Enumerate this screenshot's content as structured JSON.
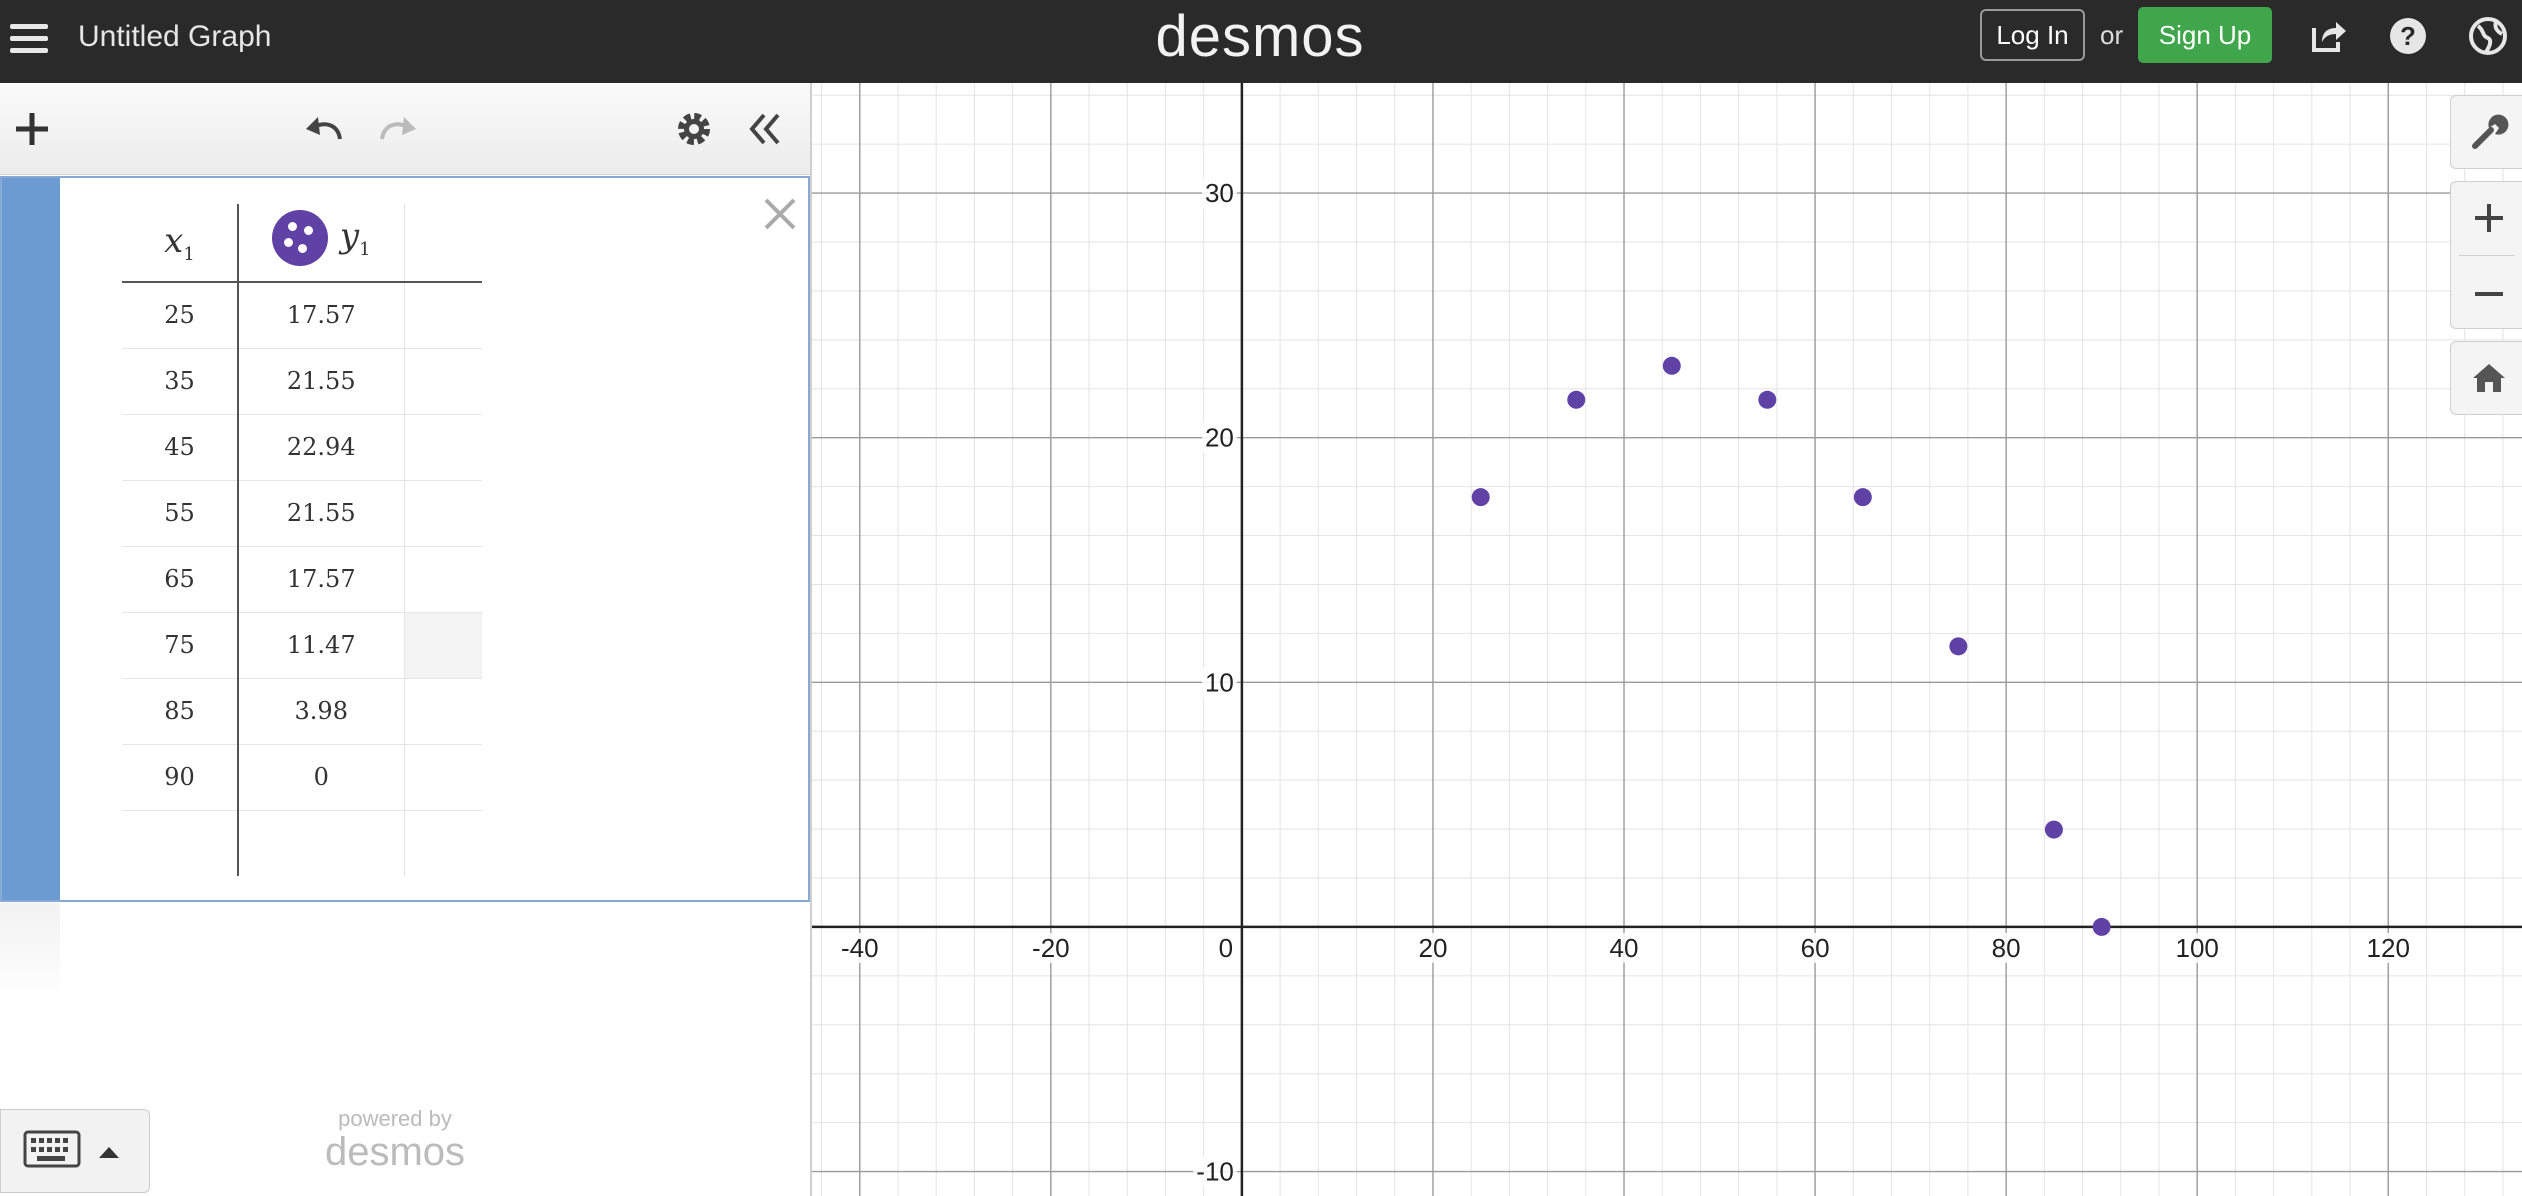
{
  "app": {
    "title": "Untitled Graph",
    "logo": "desmos",
    "login_label": "Log In",
    "or_label": "or",
    "signup_label": "Sign Up",
    "brand_color": "#3fa64b",
    "series_color": "#6042a6"
  },
  "icons": {
    "menu": "hamburger-icon",
    "share": "share-icon",
    "help": "help-icon",
    "language": "globe-icon",
    "add": "plus-icon",
    "undo": "undo-icon",
    "redo": "redo-icon",
    "settings": "gear-icon",
    "collapse": "double-chevron-left-icon",
    "delete": "close-icon",
    "wrench": "wrench-icon",
    "zoom_in": "plus-icon",
    "zoom_out": "minus-icon",
    "home": "home-icon",
    "keyboard": "keyboard-icon"
  },
  "table": {
    "header_x": "x",
    "header_y": "y",
    "subscript": "1",
    "rows": [
      {
        "x": "25",
        "y": "17.57"
      },
      {
        "x": "35",
        "y": "21.55"
      },
      {
        "x": "45",
        "y": "22.94"
      },
      {
        "x": "55",
        "y": "21.55"
      },
      {
        "x": "65",
        "y": "17.57"
      },
      {
        "x": "75",
        "y": "11.47"
      },
      {
        "x": "85",
        "y": "3.98"
      },
      {
        "x": "90",
        "y": "0"
      }
    ]
  },
  "footer": {
    "powered_by": "powered by",
    "powered_logo": "desmos"
  },
  "chart_data": {
    "type": "scatter",
    "x": [
      25,
      35,
      45,
      55,
      65,
      75,
      85,
      90
    ],
    "y": [
      17.57,
      21.55,
      22.94,
      21.55,
      17.57,
      11.47,
      3.98,
      0
    ],
    "xlim": [
      -45,
      134
    ],
    "ylim": [
      -11,
      34.5
    ],
    "x_ticks": [
      -40,
      -20,
      0,
      20,
      40,
      60,
      80,
      100,
      120
    ],
    "y_ticks": [
      -10,
      10,
      20,
      30
    ],
    "x_tick_labels": [
      "-40",
      "-20",
      "0",
      "20",
      "40",
      "60",
      "80",
      "100",
      "120"
    ],
    "y_tick_labels": [
      "-10",
      "10",
      "20",
      "30"
    ],
    "grid": true,
    "point_color": "#6042a6"
  }
}
